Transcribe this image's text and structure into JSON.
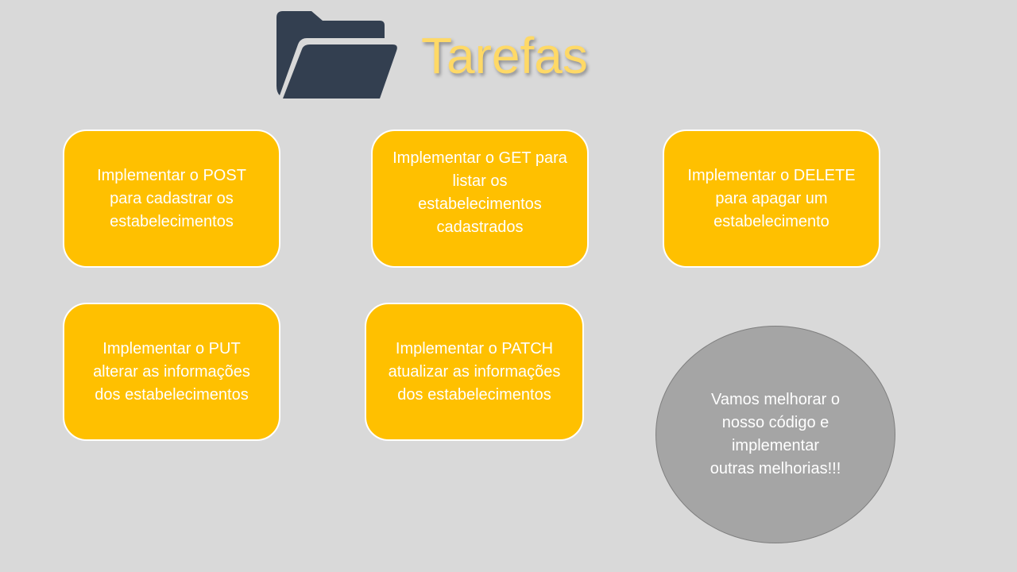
{
  "slide": {
    "title": "Tarefas",
    "icon": "folder-open-icon",
    "colors": {
      "background": "#d9d9d9",
      "title": "#ffd966",
      "card": "#ffc000",
      "card_text": "#ffffff",
      "circle": "#a5a5a5",
      "icon": "#333f50"
    }
  },
  "tasks": [
    {
      "lines": [
        "Implementar o POST",
        "para cadastrar os",
        "estabelecimentos"
      ]
    },
    {
      "lines": [
        "Implementar o GET para",
        "listar os",
        "estabelecimentos",
        "cadastrados"
      ]
    },
    {
      "lines": [
        "Implementar o DELETE",
        "para apagar um",
        "estabelecimento"
      ]
    },
    {
      "lines": [
        "Implementar o PUT",
        "alterar as informações",
        "dos estabelecimentos"
      ]
    },
    {
      "lines": [
        "Implementar o PATCH",
        "atualizar as informações",
        "dos estabelecimentos"
      ]
    }
  ],
  "note": {
    "lines": [
      "Vamos melhorar o",
      "nosso código e",
      "implementar",
      "outras melhorias!!!"
    ]
  }
}
